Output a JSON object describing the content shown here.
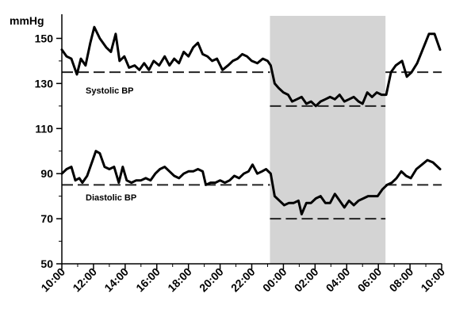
{
  "chart_data": {
    "type": "line",
    "ylabel": "mmHg",
    "ylim": [
      50,
      160
    ],
    "yticks": [
      50,
      70,
      90,
      110,
      130,
      150
    ],
    "xlim": [
      0,
      24
    ],
    "xticks": [
      {
        "x": 0,
        "label": "10:00"
      },
      {
        "x": 2,
        "label": "12:00"
      },
      {
        "x": 4,
        "label": "14:00"
      },
      {
        "x": 6,
        "label": "16:00"
      },
      {
        "x": 8,
        "label": "18:00"
      },
      {
        "x": 10,
        "label": "20:00"
      },
      {
        "x": 12,
        "label": "22:00"
      },
      {
        "x": 14,
        "label": "00:00"
      },
      {
        "x": 16,
        "label": "02:00"
      },
      {
        "x": 18,
        "label": "04:00"
      },
      {
        "x": 20,
        "label": "06:00"
      },
      {
        "x": 22,
        "label": "08:00"
      },
      {
        "x": 24,
        "label": "10:00"
      }
    ],
    "grid": false,
    "shaded_region": {
      "x_start": 13.15,
      "x_end": 20.45,
      "color": "#d4d4d4"
    },
    "series": [
      {
        "name": "Systolic BP",
        "color": "#000000",
        "points": [
          [
            0,
            145
          ],
          [
            0.3,
            142
          ],
          [
            0.6,
            141
          ],
          [
            0.95,
            134
          ],
          [
            1.2,
            141
          ],
          [
            1.5,
            138
          ],
          [
            1.8,
            148
          ],
          [
            2.05,
            155
          ],
          [
            2.4,
            150
          ],
          [
            2.8,
            146
          ],
          [
            3.1,
            144
          ],
          [
            3.4,
            152
          ],
          [
            3.65,
            140
          ],
          [
            3.95,
            142
          ],
          [
            4.25,
            137
          ],
          [
            4.6,
            138
          ],
          [
            4.9,
            136
          ],
          [
            5.2,
            139
          ],
          [
            5.5,
            136
          ],
          [
            5.8,
            140
          ],
          [
            6.15,
            138
          ],
          [
            6.5,
            142
          ],
          [
            6.8,
            138
          ],
          [
            7.1,
            141
          ],
          [
            7.4,
            139
          ],
          [
            7.7,
            144
          ],
          [
            8.0,
            142
          ],
          [
            8.3,
            146
          ],
          [
            8.6,
            148
          ],
          [
            8.9,
            143
          ],
          [
            9.2,
            142
          ],
          [
            9.5,
            140
          ],
          [
            9.8,
            141
          ],
          [
            10.15,
            136
          ],
          [
            10.5,
            138
          ],
          [
            10.8,
            140
          ],
          [
            11.1,
            141
          ],
          [
            11.4,
            143
          ],
          [
            11.7,
            142
          ],
          [
            12.0,
            140
          ],
          [
            12.35,
            139
          ],
          [
            12.7,
            141
          ],
          [
            13.0,
            140
          ],
          [
            13.2,
            138
          ],
          [
            13.45,
            130
          ],
          [
            13.7,
            128
          ],
          [
            14.0,
            126
          ],
          [
            14.3,
            125
          ],
          [
            14.55,
            122
          ],
          [
            14.85,
            123
          ],
          [
            15.15,
            124
          ],
          [
            15.45,
            121
          ],
          [
            15.75,
            122
          ],
          [
            16.05,
            120
          ],
          [
            16.35,
            122
          ],
          [
            16.65,
            123
          ],
          [
            16.95,
            124
          ],
          [
            17.25,
            123
          ],
          [
            17.55,
            125
          ],
          [
            17.85,
            122
          ],
          [
            18.15,
            123
          ],
          [
            18.45,
            124
          ],
          [
            18.75,
            122
          ],
          [
            19.0,
            121
          ],
          [
            19.3,
            126
          ],
          [
            19.6,
            124
          ],
          [
            19.9,
            126
          ],
          [
            20.2,
            125
          ],
          [
            20.5,
            125
          ],
          [
            20.8,
            135
          ],
          [
            21.1,
            138
          ],
          [
            21.5,
            140
          ],
          [
            21.8,
            133
          ],
          [
            22.1,
            135
          ],
          [
            22.45,
            139
          ],
          [
            22.8,
            145
          ],
          [
            23.2,
            152
          ],
          [
            23.55,
            152
          ],
          [
            23.9,
            145
          ]
        ]
      },
      {
        "name": "Diastolic BP",
        "color": "#000000",
        "points": [
          [
            0,
            90
          ],
          [
            0.3,
            92
          ],
          [
            0.6,
            93
          ],
          [
            0.85,
            87
          ],
          [
            1.1,
            88
          ],
          [
            1.3,
            86
          ],
          [
            1.6,
            89
          ],
          [
            1.9,
            95
          ],
          [
            2.15,
            100
          ],
          [
            2.4,
            99
          ],
          [
            2.7,
            93
          ],
          [
            3.0,
            92
          ],
          [
            3.3,
            93
          ],
          [
            3.6,
            86
          ],
          [
            3.85,
            93
          ],
          [
            4.1,
            87
          ],
          [
            4.4,
            86
          ],
          [
            4.7,
            87
          ],
          [
            5.0,
            87
          ],
          [
            5.3,
            88
          ],
          [
            5.6,
            87
          ],
          [
            5.9,
            90
          ],
          [
            6.2,
            92
          ],
          [
            6.5,
            93
          ],
          [
            6.8,
            91
          ],
          [
            7.1,
            89
          ],
          [
            7.4,
            88
          ],
          [
            7.7,
            90
          ],
          [
            8.0,
            91
          ],
          [
            8.3,
            91
          ],
          [
            8.6,
            92
          ],
          [
            8.9,
            91
          ],
          [
            9.1,
            85
          ],
          [
            9.4,
            86
          ],
          [
            9.7,
            86
          ],
          [
            10.0,
            87
          ],
          [
            10.3,
            86
          ],
          [
            10.6,
            87
          ],
          [
            10.9,
            89
          ],
          [
            11.2,
            88
          ],
          [
            11.5,
            90
          ],
          [
            11.8,
            91
          ],
          [
            12.05,
            94
          ],
          [
            12.35,
            90
          ],
          [
            12.65,
            91
          ],
          [
            12.9,
            92
          ],
          [
            13.2,
            90
          ],
          [
            13.45,
            80
          ],
          [
            13.75,
            78
          ],
          [
            14.05,
            76
          ],
          [
            14.35,
            77
          ],
          [
            14.65,
            77
          ],
          [
            14.95,
            78
          ],
          [
            15.15,
            72
          ],
          [
            15.45,
            77
          ],
          [
            15.75,
            77
          ],
          [
            16.05,
            79
          ],
          [
            16.35,
            80
          ],
          [
            16.65,
            77
          ],
          [
            16.95,
            77
          ],
          [
            17.25,
            81
          ],
          [
            17.55,
            78
          ],
          [
            17.85,
            75
          ],
          [
            18.15,
            78
          ],
          [
            18.45,
            76
          ],
          [
            18.75,
            78
          ],
          [
            19.05,
            79
          ],
          [
            19.35,
            80
          ],
          [
            19.65,
            80
          ],
          [
            19.95,
            80
          ],
          [
            20.25,
            83
          ],
          [
            20.55,
            85
          ],
          [
            20.85,
            86
          ],
          [
            21.15,
            88
          ],
          [
            21.45,
            91
          ],
          [
            21.75,
            89
          ],
          [
            22.05,
            88
          ],
          [
            22.4,
            92
          ],
          [
            22.75,
            94
          ],
          [
            23.1,
            96
          ],
          [
            23.45,
            95
          ],
          [
            23.9,
            92
          ]
        ]
      }
    ],
    "reference_lines": [
      {
        "label": "Systolic BP",
        "y": 135,
        "x_start": 0,
        "x_end": 13.15
      },
      {
        "label": "",
        "y": 120,
        "x_start": 13.15,
        "x_end": 20.45
      },
      {
        "label": "",
        "y": 135,
        "x_start": 20.45,
        "x_end": 24
      },
      {
        "label": "Diastolic BP",
        "y": 85,
        "x_start": 0,
        "x_end": 13.15
      },
      {
        "label": "",
        "y": 70,
        "x_start": 13.15,
        "x_end": 20.45
      },
      {
        "label": "",
        "y": 85,
        "x_start": 20.45,
        "x_end": 24
      }
    ]
  }
}
